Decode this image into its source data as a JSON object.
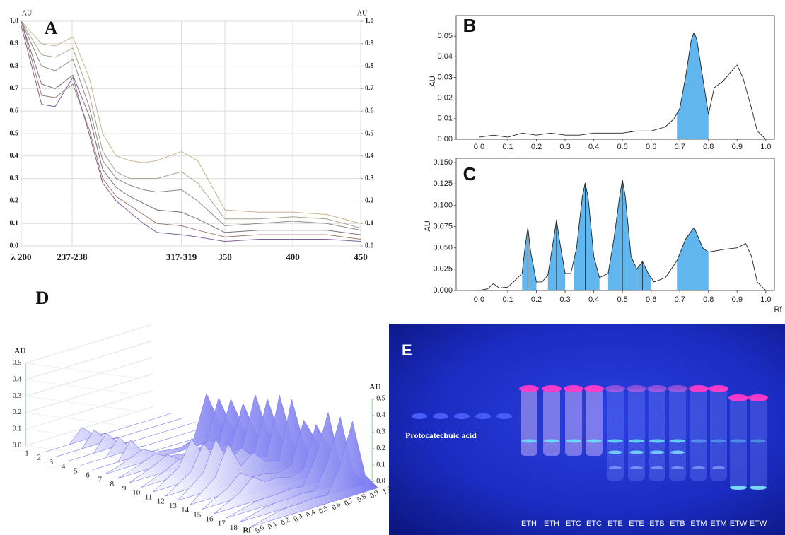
{
  "chart_data": [
    {
      "type": "line",
      "title": "A",
      "ylabel": "AU",
      "y2label": "AU",
      "x": [
        200,
        215,
        225,
        238,
        250,
        260,
        270,
        280,
        290,
        300,
        318,
        330,
        350,
        375,
        400,
        425,
        450
      ],
      "series": [
        {
          "color": "#c8b48a",
          "values": [
            1.0,
            0.9,
            0.89,
            0.93,
            0.75,
            0.5,
            0.4,
            0.38,
            0.37,
            0.38,
            0.42,
            0.38,
            0.16,
            0.15,
            0.15,
            0.14,
            0.1
          ]
        },
        {
          "color": "#a9a48c",
          "values": [
            1.0,
            0.85,
            0.84,
            0.88,
            0.68,
            0.42,
            0.33,
            0.3,
            0.3,
            0.3,
            0.33,
            0.28,
            0.12,
            0.12,
            0.13,
            0.12,
            0.08
          ]
        },
        {
          "color": "#8d8a86",
          "values": [
            1.0,
            0.8,
            0.78,
            0.83,
            0.62,
            0.38,
            0.3,
            0.27,
            0.25,
            0.24,
            0.25,
            0.2,
            0.09,
            0.1,
            0.11,
            0.1,
            0.07
          ]
        },
        {
          "color": "#7a6f7c",
          "values": [
            1.0,
            0.72,
            0.7,
            0.76,
            0.58,
            0.34,
            0.26,
            0.22,
            0.19,
            0.16,
            0.15,
            0.12,
            0.06,
            0.07,
            0.07,
            0.07,
            0.05
          ]
        },
        {
          "color": "#9a7a6a",
          "values": [
            1.0,
            0.67,
            0.66,
            0.72,
            0.52,
            0.3,
            0.22,
            0.18,
            0.14,
            0.1,
            0.09,
            0.07,
            0.04,
            0.05,
            0.05,
            0.05,
            0.03
          ]
        },
        {
          "color": "#7f5f99",
          "values": [
            0.98,
            0.63,
            0.62,
            0.75,
            0.5,
            0.28,
            0.2,
            0.15,
            0.1,
            0.06,
            0.05,
            0.04,
            0.02,
            0.03,
            0.03,
            0.03,
            0.02
          ]
        }
      ],
      "xlim": [
        200,
        450
      ],
      "xticks": [
        {
          "value": 200,
          "label": "λ 200"
        },
        {
          "value": 237.5,
          "label": "237-238"
        },
        {
          "value": 318,
          "label": "317-319"
        },
        350,
        400,
        450
      ],
      "ylim": [
        0,
        1
      ],
      "yticks": [
        {
          "value": 0,
          "label": "0.0"
        },
        0.1,
        0.2,
        0.3,
        0.4,
        0.5,
        0.6,
        0.7,
        0.8,
        0.9,
        {
          "value": 1,
          "label": "1.0"
        }
      ],
      "y2lim": [
        0,
        1
      ],
      "y2ticks": [
        {
          "value": 0,
          "label": "0.0"
        },
        0.1,
        0.2,
        0.3,
        0.4,
        0.5,
        0.6,
        0.7,
        0.8,
        0.9,
        {
          "value": 1,
          "label": "1.0"
        }
      ],
      "grid": true
    },
    {
      "type": "line",
      "title": "B",
      "ylabel": "AU",
      "x": [
        0,
        0.05,
        0.1,
        0.15,
        0.2,
        0.25,
        0.3,
        0.35,
        0.4,
        0.45,
        0.5,
        0.55,
        0.6,
        0.65,
        0.68,
        0.7,
        0.72,
        0.74,
        0.75,
        0.76,
        0.78,
        0.8,
        0.82,
        0.85,
        0.88,
        0.9,
        0.92,
        0.95,
        0.97,
        1.0
      ],
      "series": [
        {
          "color": "#222222",
          "values": [
            0.001,
            0.002,
            0.001,
            0.003,
            0.002,
            0.003,
            0.002,
            0.002,
            0.003,
            0.003,
            0.003,
            0.004,
            0.004,
            0.006,
            0.01,
            0.015,
            0.03,
            0.048,
            0.052,
            0.048,
            0.03,
            0.012,
            0.025,
            0.028,
            0.033,
            0.036,
            0.03,
            0.015,
            0.004,
            0
          ]
        }
      ],
      "shaded_ranges": [
        [
          0.69,
          0.8
        ]
      ],
      "shade_color": "#62b6ee",
      "xlim": [
        -0.08,
        1.03
      ],
      "xticks": [
        {
          "value": 0,
          "label": "0.0"
        },
        0.1,
        0.2,
        0.3,
        0.4,
        0.5,
        0.6,
        0.7,
        0.8,
        0.9,
        {
          "value": 1,
          "label": "1.0"
        }
      ],
      "ylim": [
        0,
        0.06
      ],
      "yticks": [
        {
          "value": 0,
          "label": "0.00"
        },
        0.01,
        0.02,
        0.03,
        0.04,
        0.05
      ],
      "grid": false
    },
    {
      "type": "line",
      "title": "C",
      "ylabel": "AU",
      "xlabel": "Rf",
      "x": [
        0,
        0.03,
        0.05,
        0.07,
        0.1,
        0.12,
        0.15,
        0.16,
        0.17,
        0.18,
        0.2,
        0.22,
        0.24,
        0.26,
        0.27,
        0.28,
        0.3,
        0.32,
        0.34,
        0.36,
        0.37,
        0.38,
        0.4,
        0.42,
        0.45,
        0.47,
        0.49,
        0.5,
        0.51,
        0.53,
        0.55,
        0.57,
        0.59,
        0.61,
        0.65,
        0.69,
        0.72,
        0.75,
        0.78,
        0.8,
        0.85,
        0.9,
        0.93,
        0.95,
        0.97,
        1.0
      ],
      "series": [
        {
          "color": "#222222",
          "values": [
            0,
            0.002,
            0.008,
            0.003,
            0.004,
            0.01,
            0.02,
            0.05,
            0.074,
            0.045,
            0.01,
            0.01,
            0.018,
            0.06,
            0.083,
            0.06,
            0.02,
            0.02,
            0.05,
            0.11,
            0.126,
            0.11,
            0.04,
            0.015,
            0.02,
            0.06,
            0.11,
            0.13,
            0.11,
            0.04,
            0.025,
            0.034,
            0.02,
            0.01,
            0.015,
            0.035,
            0.06,
            0.074,
            0.05,
            0.045,
            0.048,
            0.05,
            0.055,
            0.04,
            0.01,
            0
          ]
        }
      ],
      "shaded_ranges": [
        [
          0.15,
          0.2
        ],
        [
          0.24,
          0.3
        ],
        [
          0.33,
          0.42
        ],
        [
          0.45,
          0.55
        ],
        [
          0.55,
          0.6
        ],
        [
          0.69,
          0.8
        ]
      ],
      "shade_color": "#62b6ee",
      "xlim": [
        -0.08,
        1.03
      ],
      "xticks": [
        {
          "value": 0,
          "label": "0.0"
        },
        0.1,
        0.2,
        0.3,
        0.4,
        0.5,
        0.6,
        0.7,
        0.8,
        0.9,
        {
          "value": 1,
          "label": "1.0"
        }
      ],
      "ylim": [
        0,
        0.155
      ],
      "yticks": [
        {
          "value": 0,
          "label": "0.000"
        },
        0.025,
        {
          "value": 0.05,
          "label": "0.050"
        },
        0.075,
        {
          "value": 0.1,
          "label": "0.100"
        },
        0.125,
        {
          "value": 0.15,
          "label": "0.150"
        }
      ],
      "grid": false
    },
    {
      "type": "waterfall",
      "title": "D",
      "ylabel": "AU",
      "xlabel": "Rf",
      "color": "#7b7bf0",
      "categories": [
        "1",
        "2",
        "3",
        "4",
        "5",
        "6",
        "7",
        "8",
        "9",
        "10",
        "11",
        "12",
        "13",
        "14",
        "15",
        "16",
        "17",
        "18"
      ],
      "x": [
        0,
        0.1,
        0.2,
        0.3,
        0.4,
        0.5,
        0.6,
        0.7,
        0.8,
        0.9,
        1.0
      ],
      "series": [
        {
          "values": [
            0,
            0,
            0,
            0.08,
            0.01,
            0,
            0,
            0,
            0,
            0,
            0
          ]
        },
        {
          "values": [
            0,
            0,
            0,
            0.09,
            0.01,
            0,
            0,
            0,
            0,
            0,
            0
          ]
        },
        {
          "values": [
            0,
            0,
            0,
            0.1,
            0.01,
            0,
            0,
            0,
            0,
            0,
            0
          ]
        },
        {
          "values": [
            0,
            0,
            0,
            0.1,
            0.01,
            0,
            0,
            0,
            0,
            0,
            0
          ]
        },
        {
          "values": [
            0,
            0,
            0,
            0.11,
            0.01,
            0,
            0,
            0,
            0,
            0,
            0
          ]
        },
        {
          "values": [
            0,
            0.02,
            0.05,
            0.08,
            0.04,
            0.03,
            0.02,
            0.05,
            0.3,
            0.1,
            0
          ]
        },
        {
          "values": [
            0,
            0.02,
            0.05,
            0.08,
            0.04,
            0.03,
            0.02,
            0.05,
            0.3,
            0.1,
            0
          ]
        },
        {
          "values": [
            0,
            0.03,
            0.06,
            0.1,
            0.05,
            0.04,
            0.03,
            0.06,
            0.32,
            0.12,
            0
          ]
        },
        {
          "values": [
            0,
            0.03,
            0.06,
            0.1,
            0.05,
            0.04,
            0.03,
            0.06,
            0.32,
            0.12,
            0
          ]
        },
        {
          "values": [
            0,
            0.05,
            0.1,
            0.25,
            0.12,
            0.15,
            0.1,
            0.1,
            0.4,
            0.15,
            0
          ]
        },
        {
          "values": [
            0,
            0.05,
            0.1,
            0.25,
            0.12,
            0.15,
            0.1,
            0.1,
            0.4,
            0.15,
            0
          ]
        },
        {
          "values": [
            0,
            0.06,
            0.12,
            0.3,
            0.14,
            0.2,
            0.12,
            0.1,
            0.45,
            0.15,
            0
          ]
        },
        {
          "values": [
            0,
            0.06,
            0.12,
            0.3,
            0.14,
            0.2,
            0.12,
            0.1,
            0.45,
            0.15,
            0
          ]
        },
        {
          "values": [
            0,
            0.04,
            0.08,
            0.15,
            0.1,
            0.1,
            0.08,
            0.1,
            0.35,
            0.2,
            0
          ]
        },
        {
          "values": [
            0,
            0.04,
            0.08,
            0.15,
            0.1,
            0.1,
            0.08,
            0.1,
            0.35,
            0.2,
            0
          ]
        },
        {
          "values": [
            0,
            0.02,
            0.04,
            0.05,
            0.05,
            0.06,
            0.05,
            0.2,
            0.45,
            0.1,
            0
          ]
        },
        {
          "values": [
            0,
            0.02,
            0.04,
            0.05,
            0.05,
            0.06,
            0.05,
            0.2,
            0.45,
            0.1,
            0
          ]
        },
        {
          "values": [
            0,
            0.02,
            0.04,
            0.05,
            0.05,
            0.06,
            0.05,
            0.2,
            0.45,
            0.1,
            0
          ]
        }
      ],
      "xlim": [
        0,
        1
      ],
      "xticks": [
        {
          "value": 0,
          "label": "0.0"
        },
        0.1,
        0.2,
        0.3,
        0.4,
        0.5,
        0.6,
        0.7,
        0.8,
        0.9,
        {
          "value": 1,
          "label": "1.0"
        }
      ],
      "ylim": [
        0,
        0.5
      ],
      "yticks": [
        {
          "value": 0,
          "label": "0.0"
        },
        0.1,
        0.2,
        0.3,
        0.4,
        0.5
      ]
    }
  ],
  "plate": {
    "label": "E",
    "standard": "Protocatechuic acid",
    "lanes": [
      "ETH",
      "ETH",
      "ETC",
      "ETC",
      "ETE",
      "ETE",
      "ETB",
      "ETB",
      "ETM",
      "ETM",
      "ETW",
      "ETW"
    ]
  }
}
